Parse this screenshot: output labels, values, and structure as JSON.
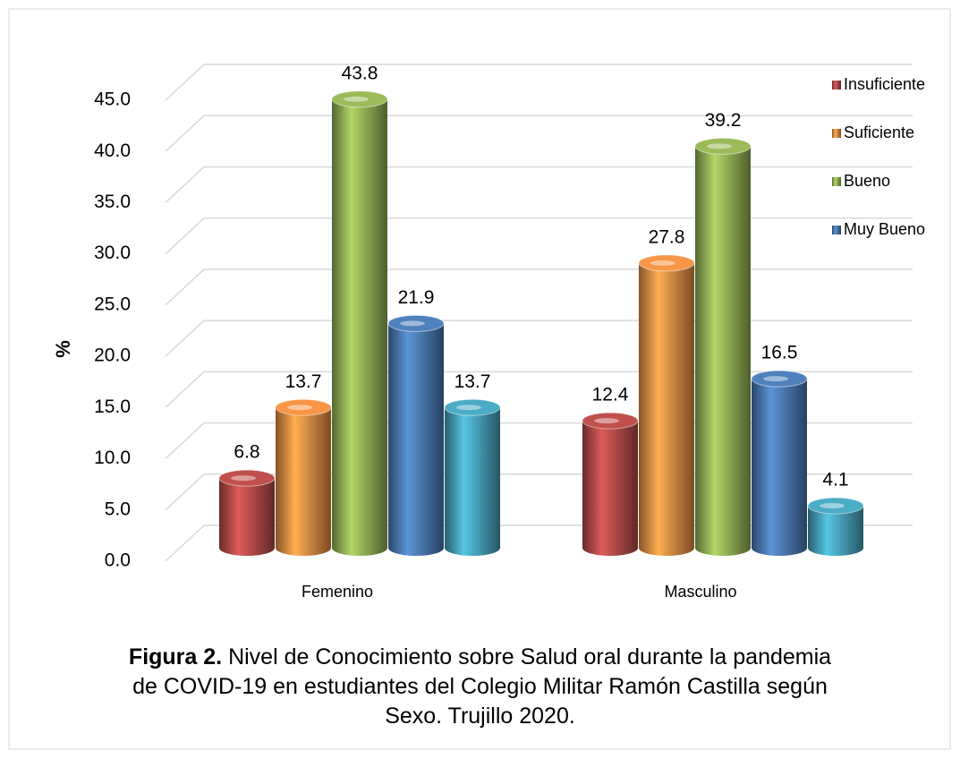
{
  "chart_data": {
    "type": "bar3d",
    "categories": [
      "Femenino",
      "Masculino"
    ],
    "series": [
      {
        "name": "Insuficiente",
        "color": "#c0504d",
        "values": [
          6.8,
          12.4
        ]
      },
      {
        "name": "Suficiente",
        "color": "#f79646",
        "values": [
          13.7,
          27.8
        ]
      },
      {
        "name": "Bueno",
        "color": "#9bbb59",
        "values": [
          43.8,
          39.2
        ]
      },
      {
        "name": "Muy Bueno",
        "color": "#4f81bd",
        "values": [
          21.9,
          16.5
        ]
      },
      {
        "color": "#4bacc6",
        "values": [
          13.7,
          4.1
        ]
      }
    ],
    "y_label": "%",
    "ylim": [
      0,
      45
    ],
    "yticks": [
      {
        "value": 0,
        "label": "0.0"
      },
      {
        "value": 5,
        "label": "5.0"
      },
      {
        "value": 10,
        "label": "10.0"
      },
      {
        "value": 15,
        "label": "15.0"
      },
      {
        "value": 20,
        "label": "20.0"
      },
      {
        "value": 25,
        "label": "25.0"
      },
      {
        "value": 30,
        "label": "30.0"
      },
      {
        "value": 35,
        "label": "35.0"
      },
      {
        "value": 40,
        "label": "40.0"
      },
      {
        "value": 45,
        "label": "45.0"
      }
    ],
    "grid": true,
    "legend": "right",
    "caption_label": "Figura 2.",
    "caption": "Nivel de Conocimiento sobre Salud oral durante la pandemia de COVID-19 en estudiantes del Colegio Militar Ramón Castilla según Sexo. Trujillo 2020."
  }
}
